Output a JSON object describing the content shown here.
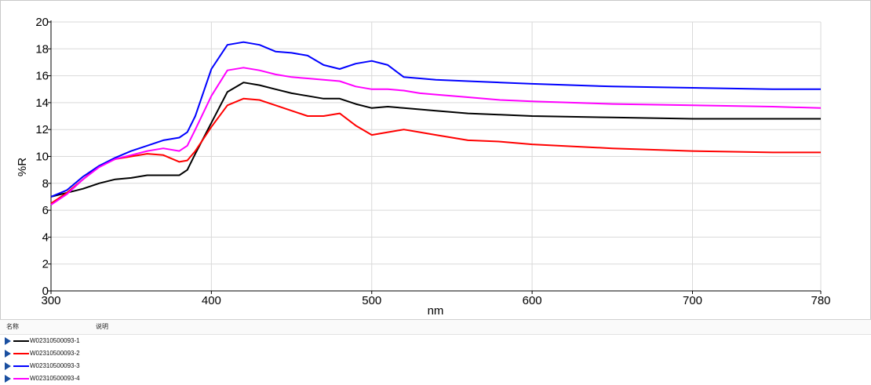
{
  "legend_panel": {
    "header_name": "名称",
    "header_desc": "说明"
  },
  "chart_data": {
    "type": "line",
    "title": "",
    "xlabel": "nm",
    "ylabel": "%R",
    "xlim": [
      300,
      780
    ],
    "ylim": [
      0,
      20
    ],
    "xticks": [
      300,
      400,
      500,
      600,
      700,
      780
    ],
    "yticks": [
      0,
      2,
      4,
      6,
      8,
      10,
      12,
      14,
      16,
      18,
      20
    ],
    "grid": true,
    "legend_position": "bottom panel",
    "x": [
      300,
      310,
      320,
      330,
      340,
      350,
      360,
      370,
      380,
      385,
      390,
      400,
      410,
      420,
      430,
      440,
      450,
      460,
      470,
      480,
      490,
      500,
      510,
      520,
      530,
      540,
      560,
      580,
      600,
      650,
      700,
      750,
      780
    ],
    "series": [
      {
        "name": "W02310500093-1",
        "color": "#000000",
        "values": [
          7.0,
          7.3,
          7.6,
          8.0,
          8.3,
          8.4,
          8.6,
          8.6,
          8.6,
          9.0,
          10.2,
          12.5,
          14.8,
          15.5,
          15.3,
          15.0,
          14.7,
          14.5,
          14.3,
          14.3,
          13.9,
          13.6,
          13.7,
          13.6,
          13.5,
          13.4,
          13.2,
          13.1,
          13.0,
          12.9,
          12.8,
          12.8,
          12.8
        ]
      },
      {
        "name": "W02310500093-2",
        "color": "#ff0000",
        "values": [
          6.5,
          7.3,
          8.3,
          9.3,
          9.8,
          10.0,
          10.2,
          10.1,
          9.6,
          9.7,
          10.4,
          12.2,
          13.8,
          14.3,
          14.2,
          13.8,
          13.4,
          13.0,
          13.0,
          13.2,
          12.3,
          11.6,
          11.8,
          12.0,
          11.8,
          11.6,
          11.2,
          11.1,
          10.9,
          10.6,
          10.4,
          10.3,
          10.3
        ]
      },
      {
        "name": "W02310500093-3",
        "color": "#0000ff",
        "values": [
          7.0,
          7.5,
          8.5,
          9.3,
          9.9,
          10.4,
          10.8,
          11.2,
          11.4,
          11.8,
          13.0,
          16.5,
          18.3,
          18.5,
          18.3,
          17.8,
          17.7,
          17.5,
          16.8,
          16.5,
          16.9,
          17.1,
          16.8,
          15.9,
          15.8,
          15.7,
          15.6,
          15.5,
          15.4,
          15.2,
          15.1,
          15.0,
          15.0
        ]
      },
      {
        "name": "W02310500093-4",
        "color": "#ff00ff",
        "values": [
          6.4,
          7.2,
          8.3,
          9.2,
          9.8,
          10.1,
          10.4,
          10.6,
          10.4,
          10.8,
          12.0,
          14.5,
          16.4,
          16.6,
          16.4,
          16.1,
          15.9,
          15.8,
          15.7,
          15.6,
          15.2,
          15.0,
          15.0,
          14.9,
          14.7,
          14.6,
          14.4,
          14.2,
          14.1,
          13.9,
          13.8,
          13.7,
          13.6
        ]
      }
    ]
  }
}
